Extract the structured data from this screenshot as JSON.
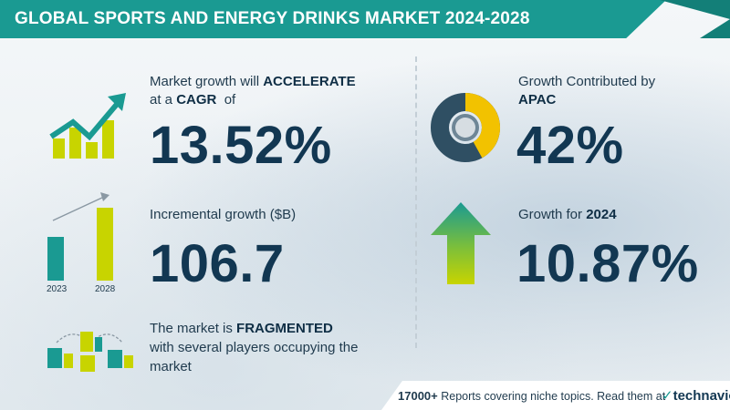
{
  "header": {
    "title": "GLOBAL SPORTS AND ENERGY DRINKS MARKET 2024-2028"
  },
  "cagr": {
    "line1_prefix": "Market growth will ",
    "line1_bold": "ACCELERATE",
    "line2_prefix": "at a ",
    "line2_bold": "CAGR",
    "line2_suffix": "  of",
    "value": "13.52%",
    "icon": "rising-chart-icon"
  },
  "incremental": {
    "label": "Incremental growth ($B)",
    "value": "106.7",
    "bars": [
      {
        "year": "2023",
        "value": 0.6
      },
      {
        "year": "2028",
        "value": 1.0
      }
    ],
    "icon": "bar-comparison-icon"
  },
  "fragmented": {
    "line1_prefix": "The market is ",
    "line1_bold": "FRAGMENTED",
    "line2": "with several players occupying the",
    "line3": "market",
    "icon": "buildings-icon"
  },
  "apac": {
    "line1": "Growth Contributed by",
    "line2_bold": "APAC",
    "value": "42%",
    "share": 0.42,
    "icon": "donut-chart-icon"
  },
  "growth2024": {
    "label_prefix": "Growth for ",
    "label_bold": "2024",
    "value": "10.87%",
    "icon": "up-arrow-icon"
  },
  "footer": {
    "count": "17000+",
    "text": " Reports covering niche topics. Read them at",
    "logo": "technavio"
  },
  "colors": {
    "teal": "#1a9a92",
    "yellow": "#c8d400",
    "navy": "#123752",
    "donut_dark": "#2f4f63",
    "donut_yellow": "#f2c200"
  }
}
